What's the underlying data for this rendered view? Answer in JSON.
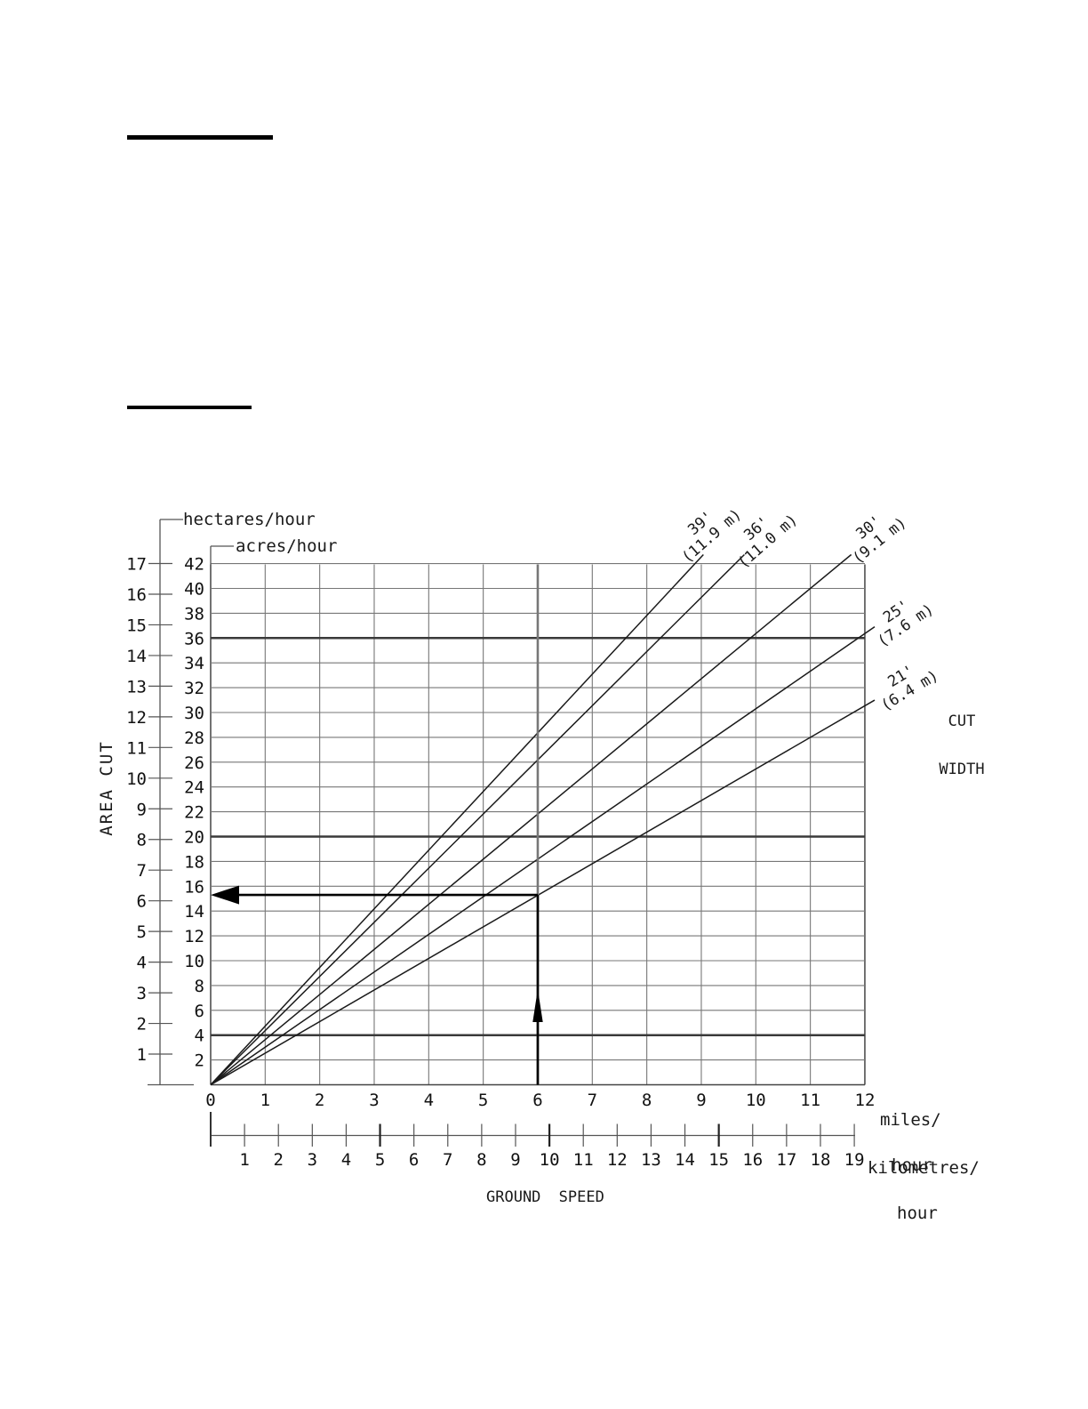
{
  "page": {
    "background": "#ffffff",
    "description_rules": 2
  },
  "chart_data": {
    "type": "line",
    "title": "",
    "x_axis": {
      "axis_title": "GROUND SPEED",
      "primary": {
        "unit_line1": "miles/",
        "unit_line2": "hour",
        "ticks": [
          0,
          1,
          2,
          3,
          4,
          5,
          6,
          7,
          8,
          9,
          10,
          11,
          12
        ],
        "range": [
          0,
          12
        ]
      },
      "secondary": {
        "unit_line1": "kilometres/",
        "unit_line2": "hour",
        "ticks": [
          1,
          2,
          3,
          4,
          5,
          6,
          7,
          8,
          9,
          10,
          11,
          12,
          13,
          14,
          15,
          16,
          17,
          18,
          19
        ],
        "emphasized_ticks": [
          5,
          10,
          15
        ]
      }
    },
    "y_axis": {
      "axis_title": "AREA CUT",
      "primary": {
        "label": "acres/hour",
        "ticks": [
          2,
          4,
          6,
          8,
          10,
          12,
          14,
          16,
          18,
          20,
          22,
          24,
          26,
          28,
          30,
          32,
          34,
          36,
          38,
          40,
          42
        ],
        "emphasized_gridlines": [
          4,
          20,
          36
        ],
        "range": [
          0,
          42
        ]
      },
      "secondary": {
        "label": "hectares/hour",
        "ticks": [
          1,
          2,
          3,
          4,
          5,
          6,
          7,
          8,
          9,
          10,
          11,
          12,
          13,
          14,
          15,
          16,
          17
        ],
        "range": [
          0,
          17
        ]
      }
    },
    "series_legend_line1": "CUT",
    "series_legend_line2": "WIDTH",
    "series": [
      {
        "name": "39' (11.9 m)",
        "label_line1": "39'",
        "label_line2": "(11.9 m)",
        "cut_width_ft": 39,
        "cut_width_m": 11.9,
        "acres_per_hour_per_mph": 4.727
      },
      {
        "name": "36' (11.0 m)",
        "label_line1": "36'",
        "label_line2": "(11.0 m)",
        "cut_width_ft": 36,
        "cut_width_m": 11.0,
        "acres_per_hour_per_mph": 4.364
      },
      {
        "name": "30' (9.1 m)",
        "label_line1": "30'",
        "label_line2": "(9.1 m)",
        "cut_width_ft": 30,
        "cut_width_m": 9.1,
        "acres_per_hour_per_mph": 3.636
      },
      {
        "name": "25' (7.6 m)",
        "label_line1": "25'",
        "label_line2": "(7.6 m)",
        "cut_width_ft": 25,
        "cut_width_m": 7.6,
        "acres_per_hour_per_mph": 3.03
      },
      {
        "name": "21' (6.4 m)",
        "label_line1": "21'",
        "label_line2": "(6.4 m)",
        "cut_width_ft": 21,
        "cut_width_m": 6.4,
        "acres_per_hour_per_mph": 2.545
      }
    ],
    "example": {
      "ground_speed_mph": 6,
      "cut_width_ft": 21,
      "result_acres_per_hour": 15.3
    },
    "colors": {
      "line": "#1a1a1a",
      "grid": "#777777",
      "emphasis": "#3a3a3a",
      "arrow": "#000000"
    }
  }
}
